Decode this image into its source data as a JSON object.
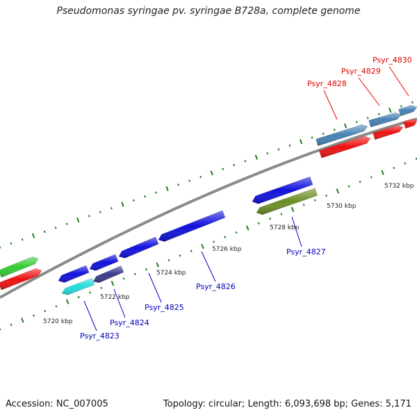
{
  "title": "Pseudomonas syringae pv. syringae B728a, complete genome",
  "footer": {
    "accession": "Accession: NC_007005",
    "summary": "Topology: circular; Length: 6,093,698 bp; Genes: 5,171"
  },
  "colors": {
    "backbone": "#8a8a8a",
    "tick": "#1f7a1f",
    "label_forward": "#dd0000",
    "label_reverse": "#0000bb",
    "callout_forward": "#ee0000",
    "callout_reverse": "#0000cc"
  },
  "kbp_labels": [
    "5720 kbp",
    "5722 kbp",
    "5724 kbp",
    "5726 kbp",
    "5728 kbp",
    "5730 kbp",
    "5732 kbp"
  ],
  "gene_labels": [
    {
      "name": "Psyr_4823",
      "strand": "reverse"
    },
    {
      "name": "Psyr_4824",
      "strand": "reverse"
    },
    {
      "name": "Psyr_4825",
      "strand": "reverse"
    },
    {
      "name": "Psyr_4826",
      "strand": "reverse"
    },
    {
      "name": "Psyr_4827",
      "strand": "reverse"
    },
    {
      "name": "Psyr_4828",
      "strand": "forward"
    },
    {
      "name": "Psyr_4829",
      "strand": "forward"
    },
    {
      "name": "Psyr_4830",
      "strand": "forward"
    }
  ],
  "features": [
    {
      "name": "gene-4822-cog",
      "color": "#33cc33"
    },
    {
      "name": "gene-4822-cds",
      "color": "#ee1111"
    },
    {
      "name": "gene-4823-gene",
      "color": "#1111dd"
    },
    {
      "name": "gene-4823-cog",
      "color": "#22dddd"
    },
    {
      "name": "gene-4824-gene",
      "color": "#1111dd"
    },
    {
      "name": "gene-4824-cog",
      "color": "#3a3a8a"
    },
    {
      "name": "gene-4825-gene",
      "color": "#1111dd"
    },
    {
      "name": "gene-4826-gene",
      "color": "#1111dd"
    },
    {
      "name": "gene-4827-gene",
      "color": "#1111dd"
    },
    {
      "name": "gene-4827-cog",
      "color": "#6b8e23"
    },
    {
      "name": "gene-4828-cog",
      "color": "#4682b4"
    },
    {
      "name": "gene-4828-cds",
      "color": "#ee1111"
    },
    {
      "name": "gene-4829-cog",
      "color": "#4682b4"
    },
    {
      "name": "gene-4829-cds",
      "color": "#ee1111"
    },
    {
      "name": "gene-4830-cog",
      "color": "#4682b4"
    },
    {
      "name": "gene-4830-cds",
      "color": "#ee1111"
    }
  ]
}
